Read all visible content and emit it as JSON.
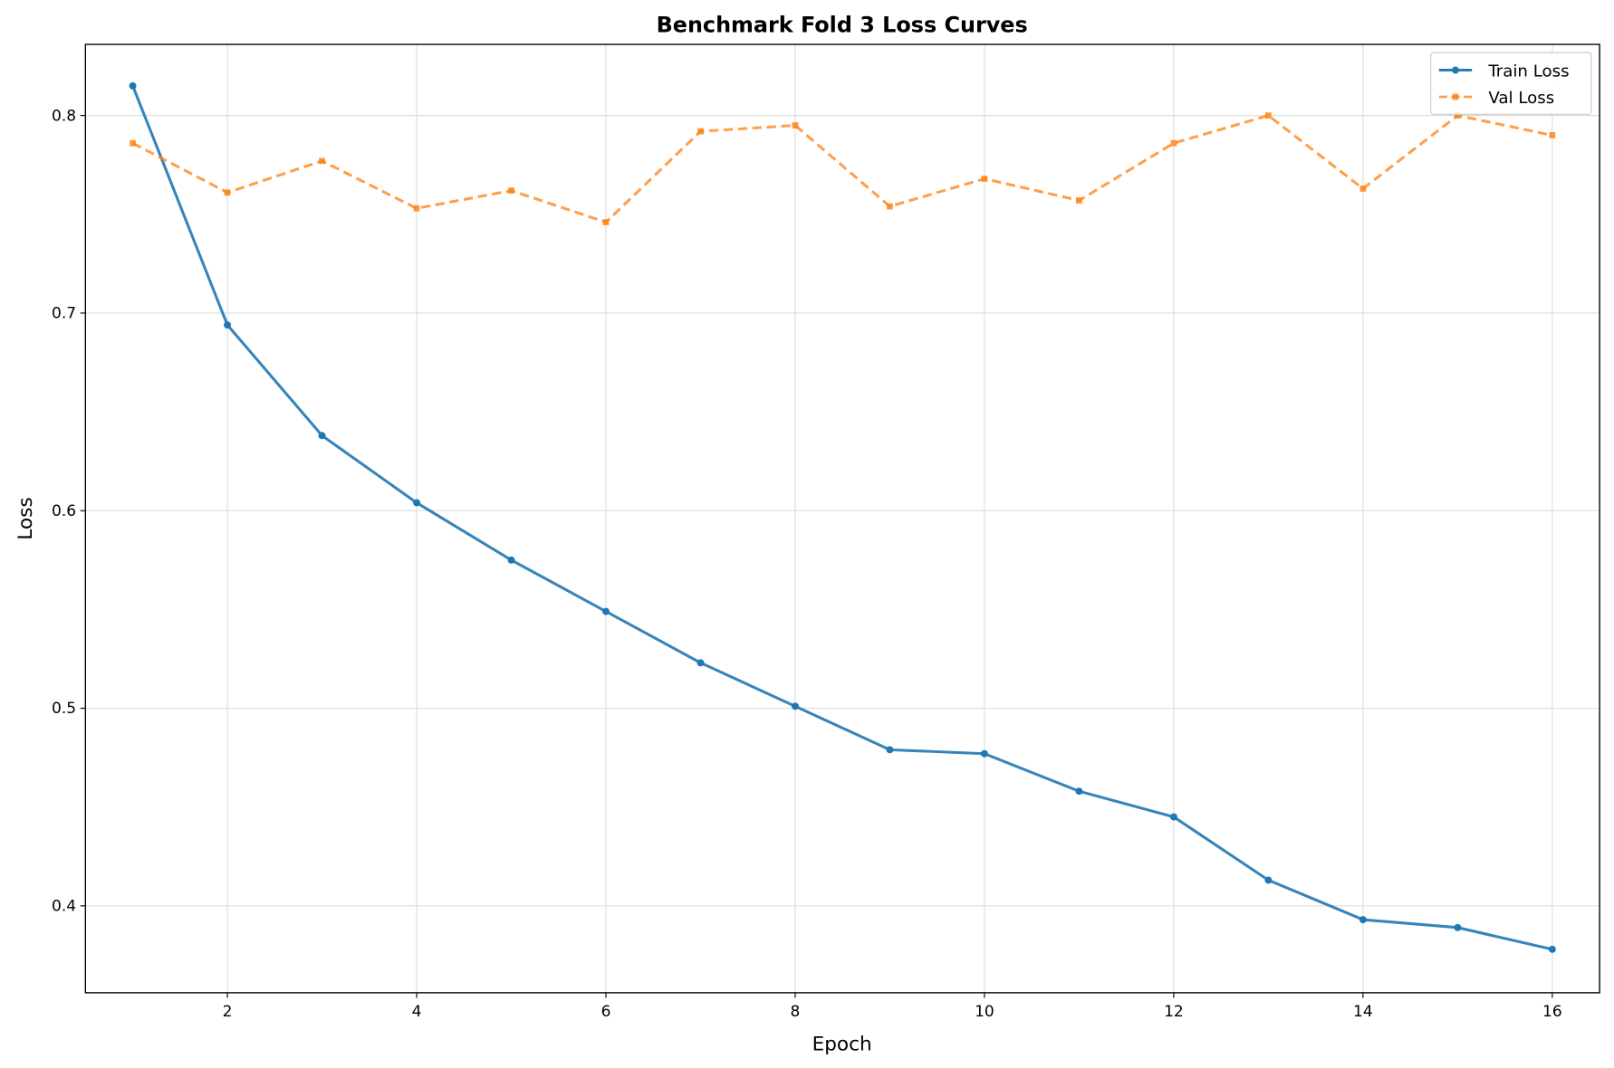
{
  "chart_data": {
    "type": "line",
    "title": "Benchmark Fold 3 Loss Curves",
    "xlabel": "Epoch",
    "ylabel": "Loss",
    "xlim": [
      0.5,
      16.5
    ],
    "ylim": [
      0.356,
      0.836
    ],
    "xticks": [
      2,
      4,
      6,
      8,
      10,
      12,
      14,
      16
    ],
    "yticks": [
      0.4,
      0.5,
      0.6,
      0.7,
      0.8
    ],
    "grid": true,
    "legend_position": "top-right",
    "x": [
      1,
      2,
      3,
      4,
      5,
      6,
      7,
      8,
      9,
      10,
      11,
      12,
      13,
      14,
      15,
      16
    ],
    "series": [
      {
        "name": "Train Loss",
        "color": "#1f77b4",
        "style": "solid",
        "marker": "circle",
        "values": [
          0.815,
          0.694,
          0.638,
          0.604,
          0.575,
          0.549,
          0.523,
          0.501,
          0.479,
          0.477,
          0.458,
          0.445,
          0.413,
          0.393,
          0.389,
          0.378
        ]
      },
      {
        "name": "Val Loss",
        "color": "#ff7f0e",
        "style": "dashed",
        "marker": "square",
        "values": [
          0.786,
          0.761,
          0.777,
          0.753,
          0.762,
          0.746,
          0.792,
          0.795,
          0.754,
          0.768,
          0.757,
          0.786,
          0.8,
          0.763,
          0.8,
          0.79
        ]
      }
    ]
  }
}
